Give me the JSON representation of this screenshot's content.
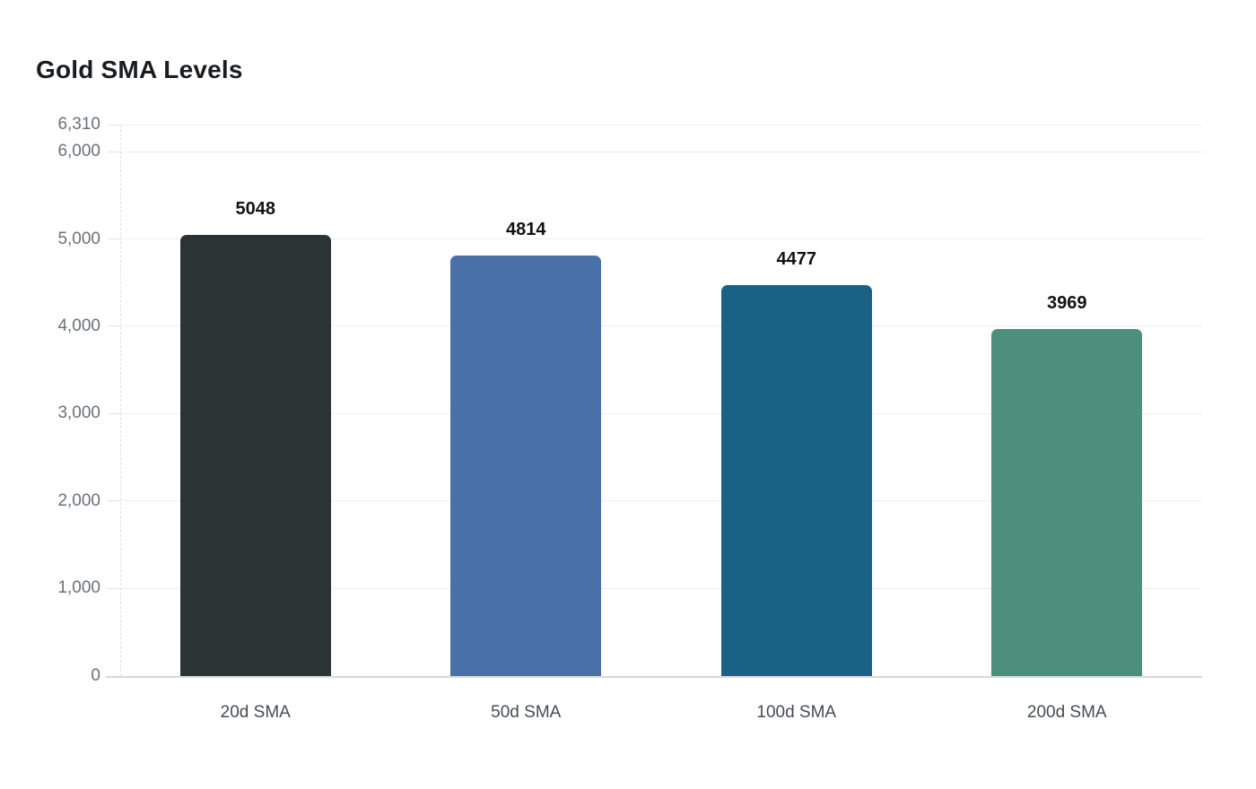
{
  "page": {
    "background": "#ffffff"
  },
  "chart_data": {
    "type": "bar",
    "title": "Gold SMA Levels",
    "categories": [
      "20d SMA",
      "50d SMA",
      "100d SMA",
      "200d SMA"
    ],
    "values": [
      5048,
      4814,
      4477,
      3969
    ],
    "value_labels": [
      "5048",
      "4814",
      "4477",
      "3969"
    ],
    "bar_colors": [
      "#2c3335",
      "#4a70a8",
      "#1a6186",
      "#4d8e7c"
    ],
    "xlabel": "",
    "ylabel": "",
    "ylim": [
      0,
      6310
    ],
    "yticks": [
      {
        "value": 0,
        "label": "0"
      },
      {
        "value": 1000,
        "label": "1,000"
      },
      {
        "value": 2000,
        "label": "2,000"
      },
      {
        "value": 3000,
        "label": "3,000"
      },
      {
        "value": 4000,
        "label": "4,000"
      },
      {
        "value": 5000,
        "label": "5,000"
      },
      {
        "value": 6000,
        "label": "6,000"
      },
      {
        "value": 6310,
        "label": "6,310"
      }
    ],
    "grid": true,
    "legend_position": "none"
  },
  "colors": {
    "title_text": "#1a1c1e",
    "value_label_text": "#121212",
    "ytick_text": "#6b7178",
    "xtick_text": "#454c55",
    "gridline": "#efefef",
    "tick_mark": "#e2e2e2",
    "axis_line": "#d8d8d8",
    "axis_dashed": "#e0e0e0"
  }
}
